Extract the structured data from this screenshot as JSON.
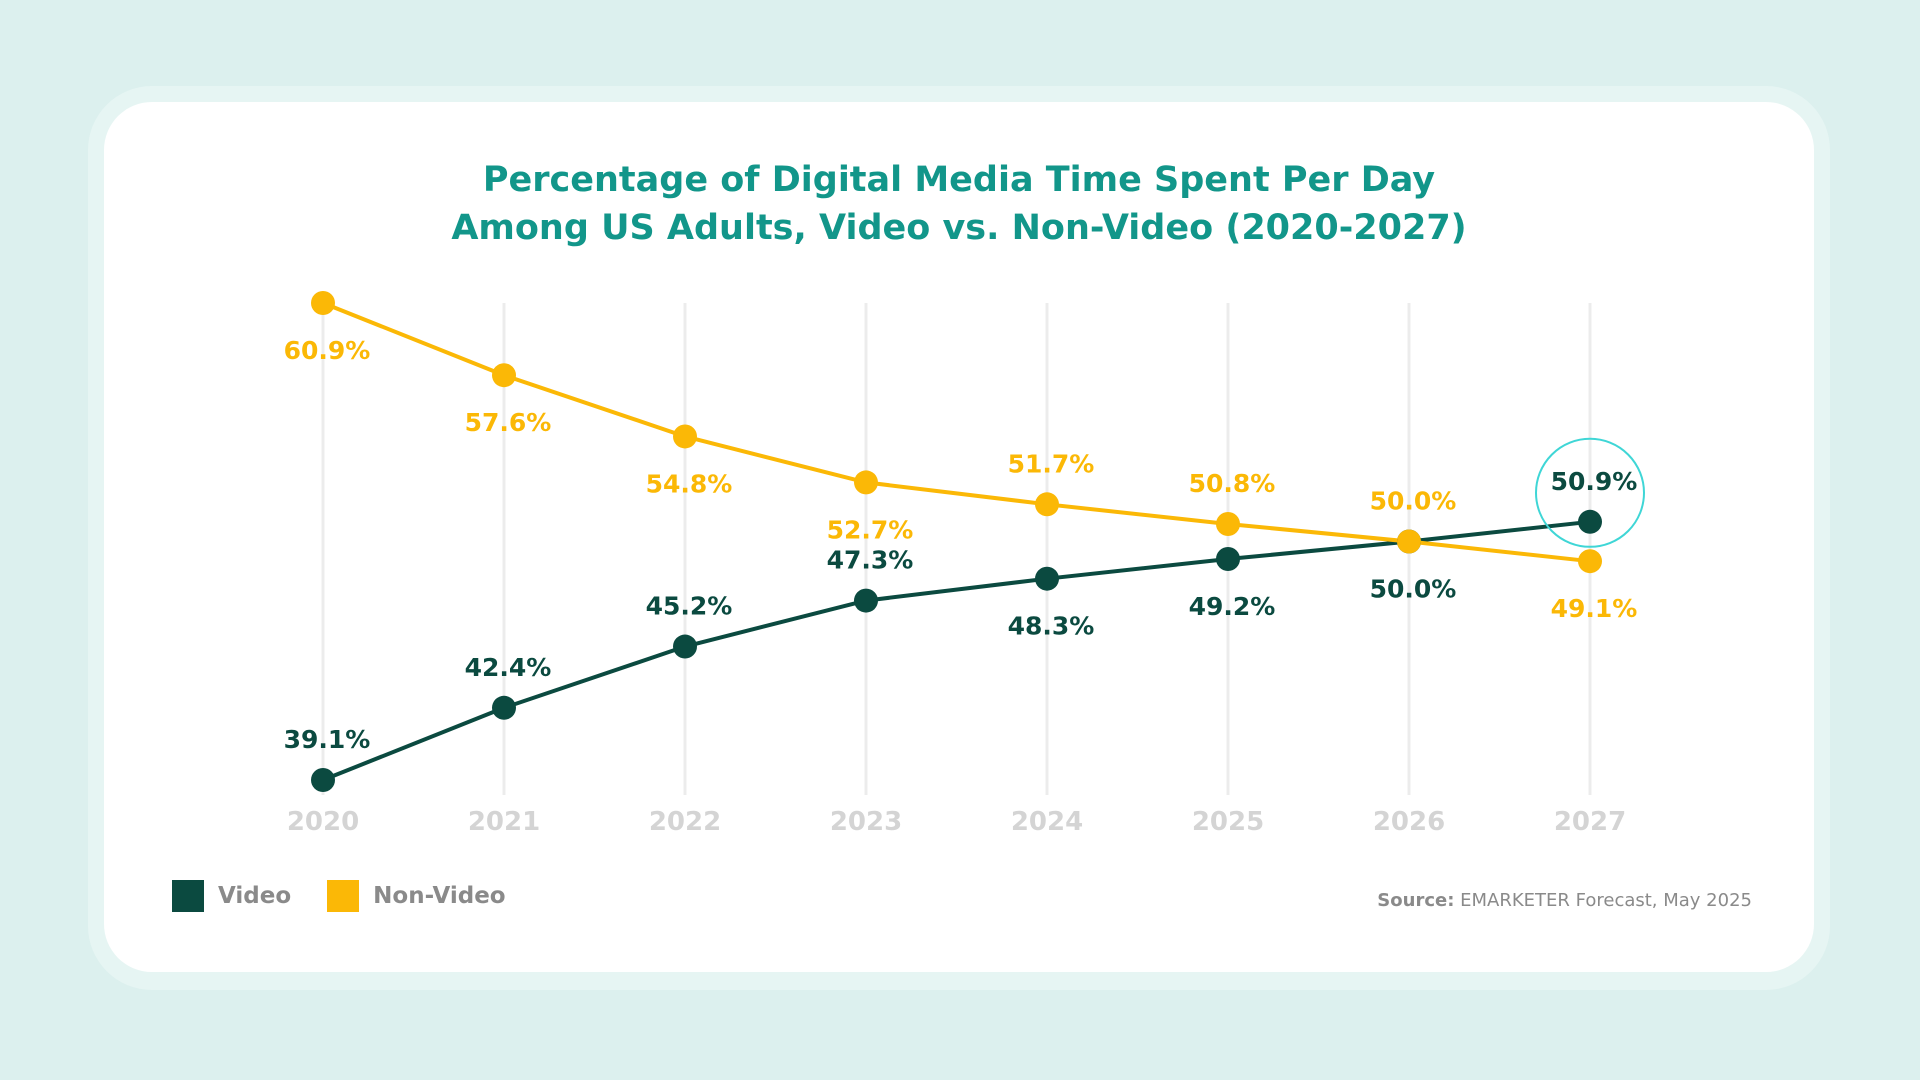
{
  "title_lines": [
    "Percentage of Digital Media Time Spent Per Day",
    "Among US Adults, Video vs. Non-Video (2020-2027)"
  ],
  "source": {
    "label": "Source:",
    "text": "EMARKETER Forecast, May 2025"
  },
  "colors": {
    "video": "#0b4a40",
    "non_video": "#fbb806",
    "title": "#12968a",
    "highlight": "#3fd6d6"
  },
  "chart_data": {
    "type": "line",
    "title": "Percentage of Digital Media Time Spent Per Day Among US Adults, Video vs. Non-Video (2020-2027)",
    "categories": [
      "2020",
      "2021",
      "2022",
      "2023",
      "2024",
      "2025",
      "2026",
      "2027"
    ],
    "series": [
      {
        "name": "Video",
        "values": [
          39.1,
          42.4,
          45.2,
          47.3,
          48.3,
          49.2,
          50.0,
          50.9
        ],
        "labels": [
          "39.1%",
          "42.4%",
          "45.2%",
          "47.3%",
          "48.3%",
          "49.2%",
          "50.0%",
          "50.9%"
        ],
        "label_side": [
          "above",
          "above",
          "above",
          "above",
          "below",
          "below",
          "below",
          "above"
        ]
      },
      {
        "name": "Non-Video",
        "values": [
          60.9,
          57.6,
          54.8,
          52.7,
          51.7,
          50.8,
          50.0,
          49.1
        ],
        "labels": [
          "60.9%",
          "57.6%",
          "54.8%",
          "52.7%",
          "51.7%",
          "50.8%",
          "50.0%",
          "49.1%"
        ],
        "label_side": [
          "below",
          "below",
          "below",
          "below",
          "above",
          "above",
          "above",
          "below"
        ]
      }
    ],
    "highlight": {
      "series": "Video",
      "category": "2027"
    },
    "ylim": [
      39.1,
      60.9
    ],
    "grid": "vertical",
    "legend": "bottom-left",
    "xlabel": "",
    "ylabel": ""
  }
}
